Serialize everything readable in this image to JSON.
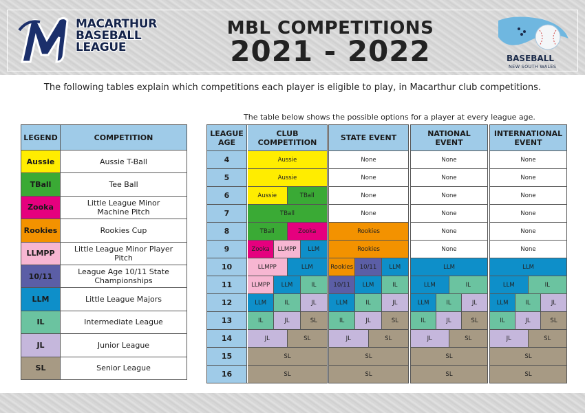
{
  "header": {
    "org_lines": [
      "MACARTHUR",
      "BASEBALL",
      "LEAGUE"
    ],
    "title_line1": "MBL COMPETITIONS",
    "title_line2": "2021 - 2022",
    "partner_brand": "BASEBALL",
    "partner_sub": "NEW SOUTH WALES"
  },
  "intro": "The following tables explain which competitions each player is eligible to play, in Macarthur club competitions.",
  "table_note": "The table below shows the possible options for a player at every league age.",
  "colors": {
    "Aussie": "#ffed00",
    "TBall": "#3aaa35",
    "Zooka": "#e5007e",
    "Rookies": "#f39200",
    "LLMPP": "#f7b6d2",
    "10/11": "#5b5ea6",
    "LLM": "#0e8fc9",
    "IL": "#6bc3a0",
    "JL": "#c5b7dc",
    "SL": "#a79a84",
    "None": "#ffffff",
    "header": "#9fcbe8"
  },
  "legend": {
    "header_legend": "LEGEND",
    "header_competition": "COMPETITION",
    "rows": [
      {
        "code": "Aussie",
        "name": "Aussie T-Ball"
      },
      {
        "code": "TBall",
        "name": "Tee Ball"
      },
      {
        "code": "Zooka",
        "name": "Little League Minor Machine Pitch"
      },
      {
        "code": "Rookies",
        "name": "Rookies Cup"
      },
      {
        "code": "LLMPP",
        "name": "Little League Minor Player Pitch"
      },
      {
        "code": "10/11",
        "name": "League Age 10/11 State Championships"
      },
      {
        "code": "LLM",
        "name": "Little League Majors"
      },
      {
        "code": "IL",
        "name": "Intermediate League"
      },
      {
        "code": "JL",
        "name": "Junior League"
      },
      {
        "code": "SL",
        "name": "Senior League"
      }
    ]
  },
  "matrix": {
    "headers": [
      "LEAGUE AGE",
      "CLUB COMPETITION",
      "STATE EVENT",
      "NATIONAL EVENT",
      "INTERNATIONAL EVENT"
    ],
    "rows": [
      {
        "age": "4",
        "club": [
          "Aussie"
        ],
        "state": [
          "None"
        ],
        "national": [
          "None"
        ],
        "international": [
          "None"
        ]
      },
      {
        "age": "5",
        "club": [
          "Aussie"
        ],
        "state": [
          "None"
        ],
        "national": [
          "None"
        ],
        "international": [
          "None"
        ]
      },
      {
        "age": "6",
        "club": [
          "Aussie",
          "TBall"
        ],
        "state": [
          "None"
        ],
        "national": [
          "None"
        ],
        "international": [
          "None"
        ]
      },
      {
        "age": "7",
        "club": [
          "TBall"
        ],
        "state": [
          "None"
        ],
        "national": [
          "None"
        ],
        "international": [
          "None"
        ]
      },
      {
        "age": "8",
        "club": [
          "TBall",
          "Zooka"
        ],
        "state": [
          "Rookies"
        ],
        "national": [
          "None"
        ],
        "international": [
          "None"
        ]
      },
      {
        "age": "9",
        "club": [
          "Zooka",
          "LLMPP",
          "LLM"
        ],
        "state": [
          "Rookies"
        ],
        "national": [
          "None"
        ],
        "international": [
          "None"
        ]
      },
      {
        "age": "10",
        "club": [
          "LLMPP",
          "LLM"
        ],
        "state": [
          "Rookies",
          "10/11",
          "LLM"
        ],
        "national": [
          "LLM"
        ],
        "international": [
          "LLM"
        ]
      },
      {
        "age": "11",
        "club": [
          "LLMPP",
          "LLM",
          "IL"
        ],
        "state": [
          "10/11",
          "LLM",
          "IL"
        ],
        "national": [
          "LLM",
          "IL"
        ],
        "international": [
          "LLM",
          "IL"
        ]
      },
      {
        "age": "12",
        "club": [
          "LLM",
          "IL",
          "JL"
        ],
        "state": [
          "LLM",
          "IL",
          "JL"
        ],
        "national": [
          "LLM",
          "IL",
          "JL"
        ],
        "international": [
          "LLM",
          "IL",
          "JL"
        ]
      },
      {
        "age": "13",
        "club": [
          "IL",
          "JL",
          "SL"
        ],
        "state": [
          "IL",
          "JL",
          "SL"
        ],
        "national": [
          "IL",
          "JL",
          "SL"
        ],
        "international": [
          "IL",
          "JL",
          "SL"
        ]
      },
      {
        "age": "14",
        "club": [
          "JL",
          "SL"
        ],
        "state": [
          "JL",
          "SL"
        ],
        "national": [
          "JL",
          "SL"
        ],
        "international": [
          "JL",
          "SL"
        ]
      },
      {
        "age": "15",
        "club": [
          "SL"
        ],
        "state": [
          "SL"
        ],
        "national": [
          "SL"
        ],
        "international": [
          "SL"
        ]
      },
      {
        "age": "16",
        "club": [
          "SL"
        ],
        "state": [
          "SL"
        ],
        "national": [
          "SL"
        ],
        "international": [
          "SL"
        ]
      }
    ]
  }
}
